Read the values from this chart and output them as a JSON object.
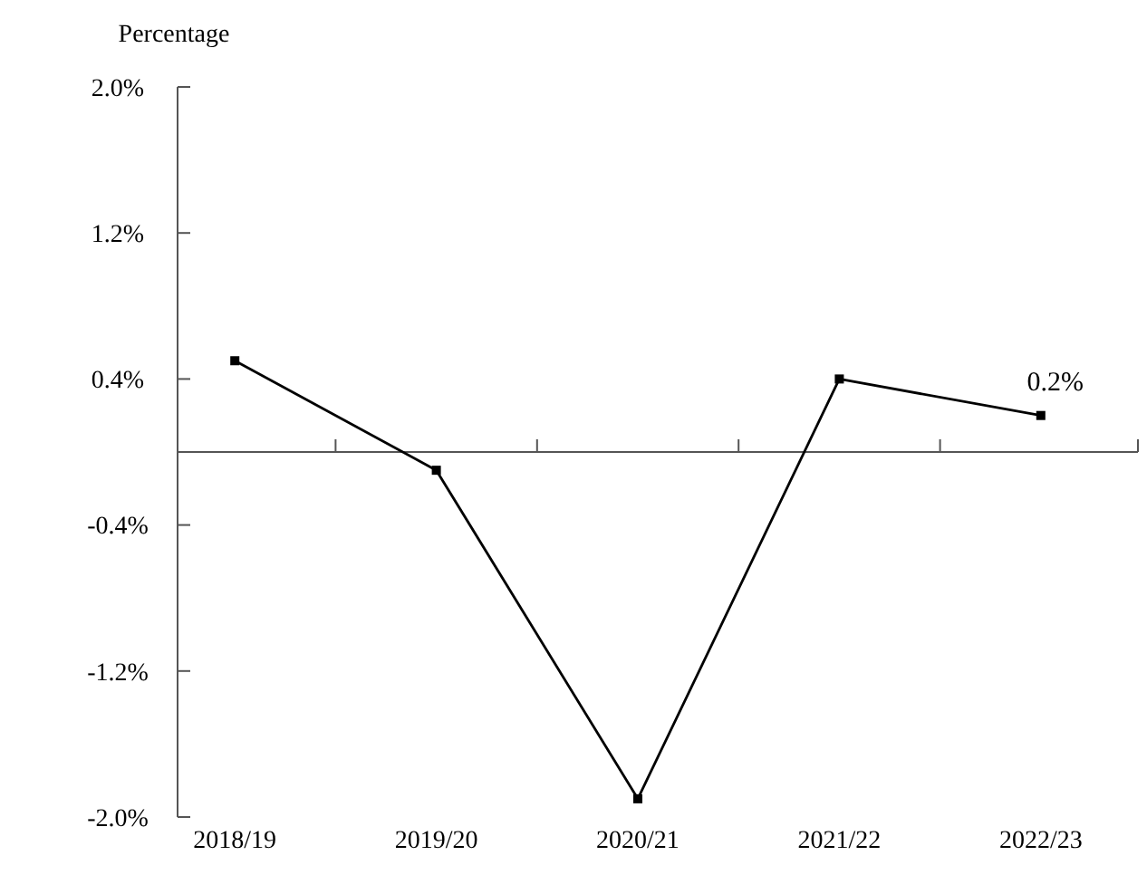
{
  "chart_data": {
    "type": "line",
    "ylabel": "Percentage",
    "categories": [
      "2018/19",
      "2019/20",
      "2020/21",
      "2021/22",
      "2022/23"
    ],
    "series": [
      {
        "color": "#000000",
        "values": [
          0.5,
          -0.1,
          -1.9,
          0.4,
          0.2
        ]
      }
    ],
    "ylim": [
      -2.0,
      2.0
    ],
    "yticks": [
      {
        "value": -2.0,
        "label": "-2.0%"
      },
      {
        "value": -1.2,
        "label": "-1.2%"
      },
      {
        "value": -0.4,
        "label": "-0.4%"
      },
      {
        "value": 0.4,
        "label": "0.4%"
      },
      {
        "value": 1.2,
        "label": "1.2%"
      },
      {
        "value": 2.0,
        "label": "2.0%"
      }
    ],
    "annotations": [
      {
        "text": "0.2%",
        "x": "2022/23",
        "y": 0.2
      }
    ],
    "marker": "square",
    "line_style": "solid"
  }
}
